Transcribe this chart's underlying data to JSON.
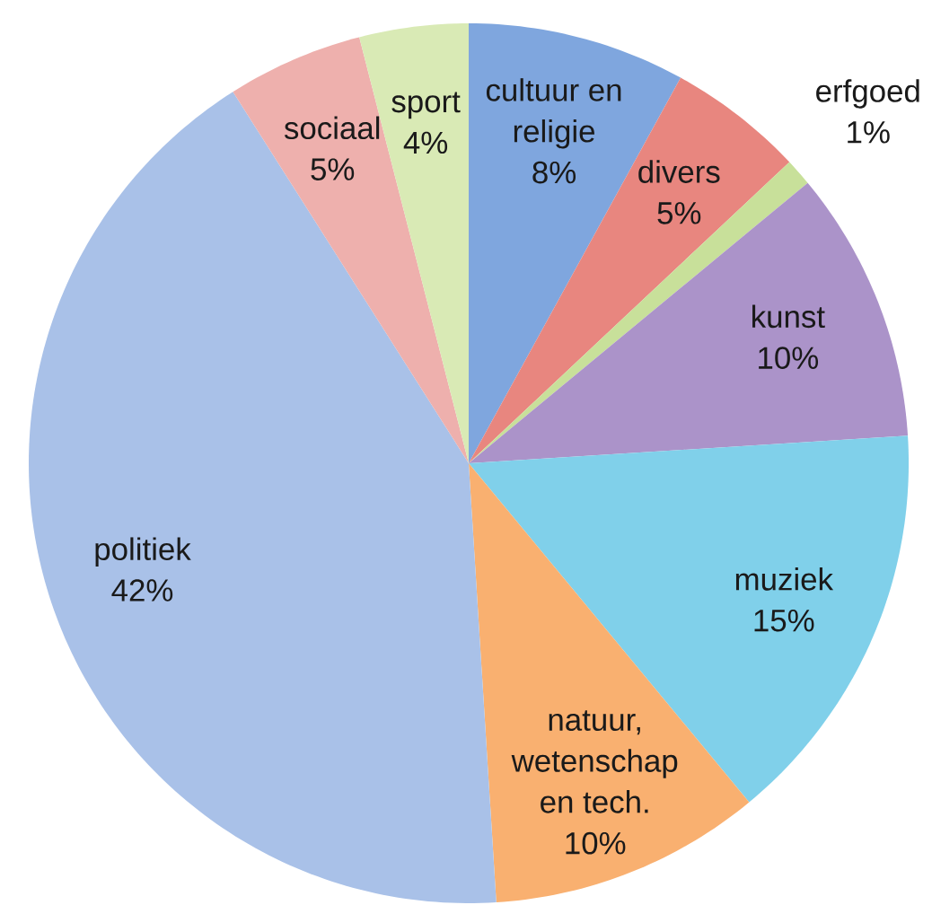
{
  "chart_data": {
    "type": "pie",
    "categories": [
      "cultuur en religie",
      "divers",
      "erfgoed",
      "kunst",
      "muziek",
      "natuur, wetenschap en tech.",
      "politiek",
      "sociaal",
      "sport"
    ],
    "values": [
      8,
      5,
      1,
      10,
      15,
      10,
      42,
      5,
      4
    ],
    "value_labels": [
      "8%",
      "5%",
      "1%",
      "10%",
      "15%",
      "10%",
      "42%",
      "5%",
      "4%"
    ],
    "colors": [
      "#7fa6de",
      "#e8867f",
      "#c8e09a",
      "#ab93c9",
      "#80d0ea",
      "#f9b070",
      "#a9c1e8",
      "#eeb0ad",
      "#d9eab5"
    ]
  }
}
